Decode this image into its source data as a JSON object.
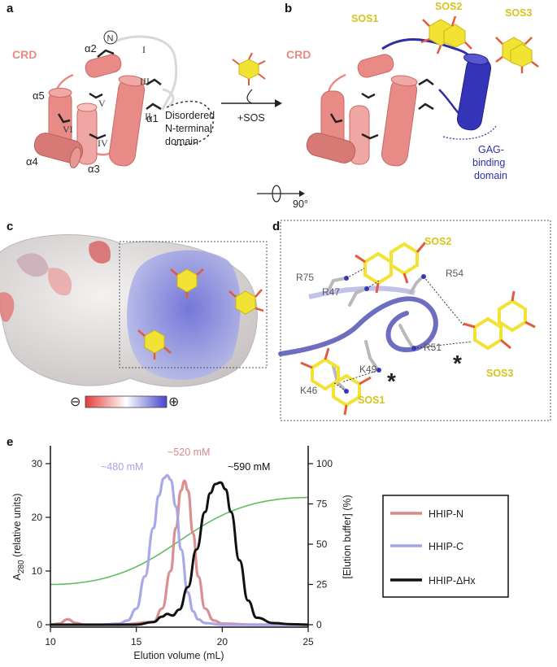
{
  "panels": {
    "a": {
      "label": "a",
      "crd_label": "CRD",
      "helices": [
        "α1",
        "α2",
        "α3",
        "α4",
        "α5"
      ],
      "disulfides": [
        "I",
        "II",
        "III",
        "IV",
        "V",
        "VI"
      ],
      "n_terminus": "N",
      "annotation_lines": [
        "Disordered",
        "N-terminal",
        "domain"
      ]
    },
    "b": {
      "label": "b",
      "crd_label": "CRD",
      "arrow_label": "+SOS",
      "rotation_label": "90°",
      "sos_labels": [
        "SOS1",
        "SOS2",
        "SOS3"
      ],
      "gag_lines": [
        "GAG-",
        "binding",
        "domain"
      ]
    },
    "c": {
      "label": "c",
      "neg_symbol": "⊖",
      "pos_symbol": "⊕"
    },
    "d": {
      "label": "d",
      "residues": [
        "R75",
        "R47",
        "R54",
        "R51",
        "K49",
        "K46"
      ],
      "sos_labels": [
        "SOS1",
        "SOS2",
        "SOS3"
      ],
      "asterisk": "*"
    },
    "e": {
      "label": "e"
    }
  },
  "chart_data": {
    "type": "line",
    "xlabel": "Elution volume (mL)",
    "ylabel_main": "A",
    "ylabel_sub": "280",
    "ylabel_rest": " (relative units)",
    "y2label": "[Elution buffer] (%)",
    "xlim": [
      10,
      25
    ],
    "ylim": [
      0,
      30
    ],
    "y2lim": [
      0,
      100
    ],
    "xticks": [
      10,
      15,
      20,
      25
    ],
    "yticks": [
      0,
      10,
      20,
      30
    ],
    "y2ticks": [
      0,
      25,
      50,
      75,
      100
    ],
    "legend_position": "right",
    "series": [
      {
        "name": "HHIP-N",
        "color": "#d88a8a",
        "x": [
          10,
          10.5,
          11,
          11.5,
          12,
          14,
          16,
          16.5,
          17,
          17.3,
          17.6,
          17.8,
          18.0,
          18.3,
          18.6,
          19,
          19.5,
          20,
          22,
          25
        ],
        "y": [
          0,
          0.2,
          1.0,
          0.3,
          0,
          0,
          0.5,
          3,
          10,
          18,
          25,
          26.8,
          25,
          17,
          9,
          3,
          0.8,
          0.2,
          0,
          0
        ]
      },
      {
        "name": "HHIP-C",
        "color": "#a4a4e8",
        "x": [
          10,
          13,
          14,
          14.5,
          15,
          15.5,
          16,
          16.3,
          16.6,
          16.8,
          17.0,
          17.3,
          17.6,
          18,
          18.3,
          18.6,
          19,
          20,
          22,
          25
        ],
        "y": [
          0,
          0,
          0.2,
          0.8,
          3,
          9,
          18,
          24,
          27.3,
          27.8,
          27,
          22,
          14,
          6,
          2.5,
          1,
          0.3,
          0,
          0,
          0
        ]
      },
      {
        "name": "HHIP-ΔHx",
        "color": "#111111",
        "x": [
          10,
          15,
          16,
          16.5,
          16.8,
          17.1,
          17.5,
          18,
          18.5,
          19,
          19.3,
          19.6,
          19.9,
          20.2,
          20.5,
          21,
          21.5,
          22,
          23,
          24,
          25
        ],
        "y": [
          0,
          0,
          0.5,
          1.5,
          2.0,
          1.7,
          2.8,
          7,
          14,
          21,
          24.5,
          26.2,
          26.5,
          25.2,
          21,
          12,
          4.5,
          1.3,
          0.3,
          0.1,
          0
        ]
      },
      {
        "name": "gradient",
        "color": "#5cb85c",
        "axis": "y2",
        "x": [
          10,
          25
        ],
        "y": [
          25,
          79
        ]
      }
    ],
    "annotations": [
      {
        "text": "~520 mM",
        "color": "#d88a8a"
      },
      {
        "text": "~480 mM",
        "color": "#a4a4e8"
      },
      {
        "text": "~590 mM",
        "color": "#111111"
      }
    ]
  }
}
